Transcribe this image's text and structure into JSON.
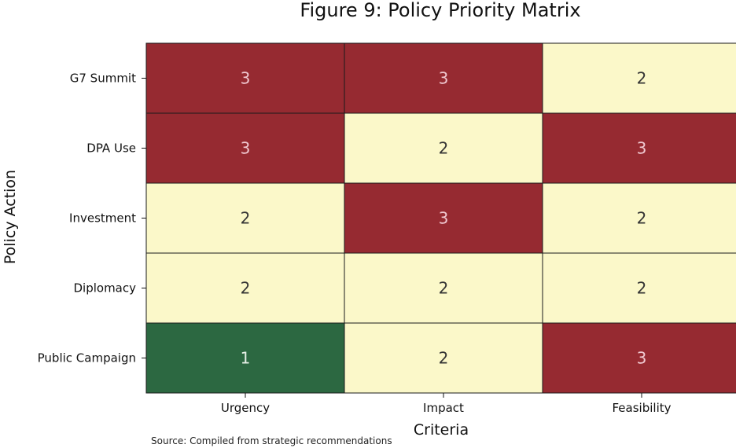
{
  "chart_data": {
    "type": "heatmap",
    "title": "Figure 9: Policy Priority Matrix",
    "xlabel": "Criteria",
    "ylabel": "Policy Action",
    "x_categories": [
      "Urgency",
      "Impact",
      "Feasibility"
    ],
    "y_categories": [
      "G7 Summit",
      "DPA Use",
      "Investment",
      "Diplomacy",
      "Public Campaign"
    ],
    "values": [
      [
        3,
        3,
        2
      ],
      [
        3,
        2,
        3
      ],
      [
        2,
        3,
        2
      ],
      [
        2,
        2,
        2
      ],
      [
        1,
        2,
        3
      ]
    ],
    "color_scale": {
      "1": "#2c6841",
      "2": "#fbf8c9",
      "3": "#962a31"
    },
    "annotation_colors": {
      "1": "#e6efe6",
      "2": "#333333",
      "3": "#f0c8d0"
    },
    "legend": "none"
  },
  "source_note": "Source: Compiled from strategic recommendations"
}
